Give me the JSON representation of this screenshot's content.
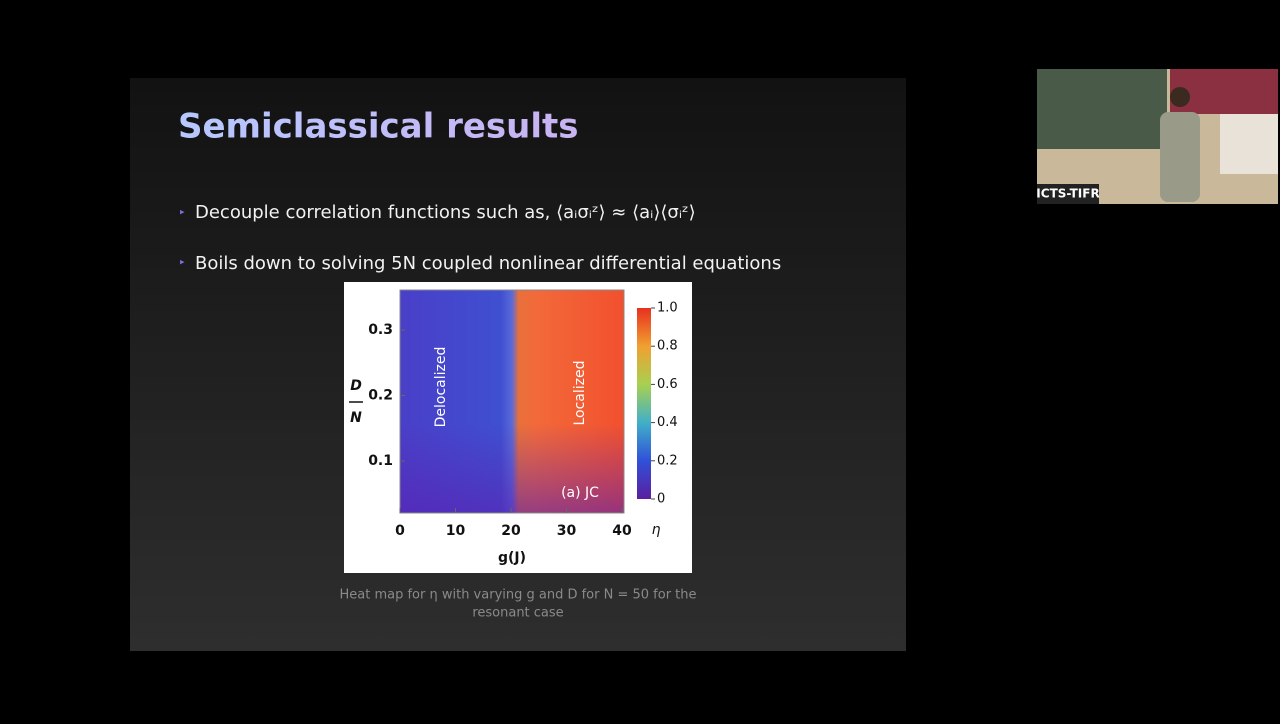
{
  "slide": {
    "title": "Semiclassical results",
    "bullets": [
      "Decouple correlation functions such as, ⟨aᵢσᵢᶻ⟩ ≈ ⟨aᵢ⟩⟨σᵢᶻ⟩",
      "Boils down to solving 5N  coupled nonlinear differential equations"
    ],
    "figure": {
      "xticks": [
        0,
        10,
        20,
        30,
        40
      ],
      "yticks": [
        0.1,
        0.2,
        0.3
      ],
      "colorbar_ticks": [
        0,
        0.2,
        0.4,
        0.6,
        0.8,
        {
          "value": 1,
          "label": "1.0"
        }
      ],
      "xlabel": "g(J)",
      "ylabel_numerator": "D",
      "ylabel_denominator": "N",
      "colorbar_label": "η",
      "region_left": "Delocalized",
      "region_right": "Localized",
      "panel_label": "(a) JC"
    },
    "caption": [
      "Heat map for η with varying g and D for N = 50 for the",
      "resonant case"
    ]
  },
  "webcam": {
    "label": "ICTS-TIFR"
  }
}
